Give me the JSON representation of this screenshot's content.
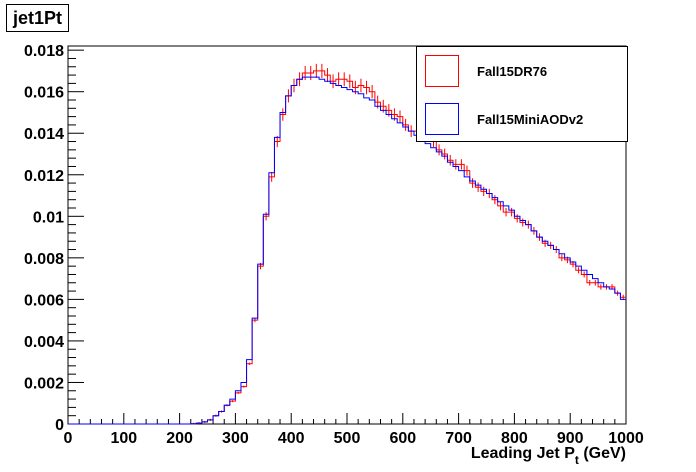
{
  "title": "jet1Pt",
  "chart_data": {
    "type": "line",
    "title": "jet1Pt",
    "xlabel": "Leading Jet P",
    "xlabel_sub": "t",
    "xlabel_unit": " (GeV)",
    "ylabel": "",
    "xlim": [
      0,
      1000
    ],
    "ylim": [
      0,
      0.0182
    ],
    "bin_width": 10,
    "xticks": [
      "0",
      "100",
      "200",
      "300",
      "400",
      "500",
      "600",
      "700",
      "800",
      "900",
      "1000"
    ],
    "yticks": [
      "0",
      "0.002",
      "0.004",
      "0.006",
      "0.008",
      "0.01",
      "0.012",
      "0.014",
      "0.016",
      "0.018"
    ],
    "legend_position": "top-right",
    "series": [
      {
        "name": "Fall15DR76",
        "color": "#ff0000",
        "style": "histogram-with-errors",
        "values": [
          0,
          0,
          0,
          0,
          0,
          0,
          0,
          0,
          0,
          0,
          0,
          0,
          0,
          0,
          0,
          0,
          0,
          0,
          0,
          0,
          0,
          0,
          1e-05,
          4e-05,
          0.0001,
          0.0002,
          0.0004,
          0.0006,
          0.0009,
          0.0011,
          0.0015,
          0.0018,
          0.0029,
          0.005,
          0.0076,
          0.01,
          0.0119,
          0.0136,
          0.0149,
          0.0158,
          0.0163,
          0.0166,
          0.0169,
          0.0169,
          0.017,
          0.017,
          0.0168,
          0.0165,
          0.0166,
          0.0166,
          0.0165,
          0.0162,
          0.0163,
          0.0162,
          0.016,
          0.0155,
          0.0153,
          0.0151,
          0.0149,
          0.0148,
          0.0144,
          0.0141,
          0.0141,
          0.014,
          0.0139,
          0.0136,
          0.0132,
          0.013,
          0.0127,
          0.0125,
          0.0125,
          0.0122,
          0.0116,
          0.0114,
          0.0112,
          0.0111,
          0.0108,
          0.0105,
          0.0102,
          0.0102,
          0.0099,
          0.0097,
          0.0096,
          0.0093,
          0.009,
          0.0087,
          0.0086,
          0.0084,
          0.008,
          0.0079,
          0.0077,
          0.0074,
          0.0072,
          0.0068,
          0.0068,
          0.0066,
          0.0066,
          0.0066,
          0.0063,
          0.0061
        ]
      },
      {
        "name": "Fall15MiniAODv2",
        "color": "#0000ff",
        "style": "histogram",
        "values": [
          0,
          0,
          0,
          0,
          0,
          0,
          0,
          0,
          0,
          0,
          0,
          0,
          0,
          0,
          0,
          0,
          0,
          0,
          0,
          0,
          0,
          0,
          1e-05,
          4e-05,
          0.0001,
          0.0002,
          0.0004,
          0.0006,
          0.0009,
          0.0012,
          0.0016,
          0.002,
          0.0031,
          0.0051,
          0.0077,
          0.0101,
          0.0121,
          0.0138,
          0.015,
          0.0158,
          0.0163,
          0.0166,
          0.0167,
          0.0167,
          0.0167,
          0.0166,
          0.0165,
          0.0164,
          0.0163,
          0.0162,
          0.0161,
          0.016,
          0.0159,
          0.0157,
          0.0156,
          0.0153,
          0.0151,
          0.0149,
          0.0147,
          0.0145,
          0.0143,
          0.0141,
          0.0139,
          0.0137,
          0.0135,
          0.0133,
          0.0131,
          0.0129,
          0.0126,
          0.0124,
          0.0122,
          0.0119,
          0.0117,
          0.0115,
          0.0113,
          0.0111,
          0.0109,
          0.0107,
          0.0105,
          0.0103,
          0.01,
          0.0098,
          0.0096,
          0.0093,
          0.009,
          0.0088,
          0.0086,
          0.0084,
          0.0082,
          0.008,
          0.0078,
          0.0076,
          0.0074,
          0.0072,
          0.007,
          0.0068,
          0.0066,
          0.0065,
          0.0063,
          0.006
        ]
      }
    ]
  }
}
